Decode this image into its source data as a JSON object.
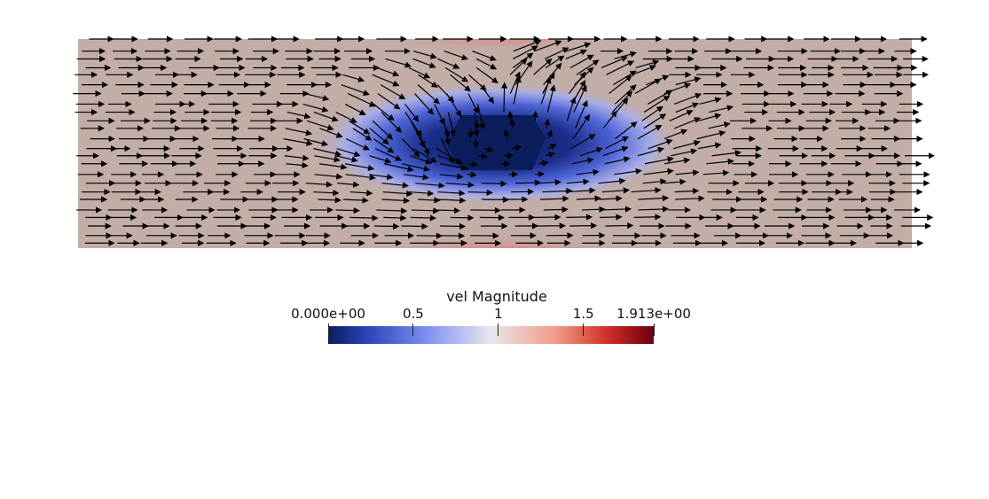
{
  "scene": {
    "colormap": {
      "name": "Cool to Warm",
      "stops": [
        {
          "t": 0.0,
          "color": "#0b1d5c"
        },
        {
          "t": 0.12,
          "color": "#2a45b8"
        },
        {
          "t": 0.3,
          "color": "#7c8ef0"
        },
        {
          "t": 0.5,
          "color": "#e9e6ee"
        },
        {
          "t": 0.7,
          "color": "#f39b85"
        },
        {
          "t": 0.86,
          "color": "#cf2d25"
        },
        {
          "t": 1.0,
          "color": "#6b0010"
        }
      ]
    },
    "background_color": "#ffffff",
    "domain_fill_color": "#c3ada7",
    "arrow_color": "#000000"
  },
  "colorbar": {
    "title": "vel Magnitude",
    "range": [
      0.0,
      1.913
    ],
    "ticks": [
      {
        "value": 0.0,
        "label": "0.000e+00"
      },
      {
        "value": 0.5,
        "label": "0.5"
      },
      {
        "value": 1.0,
        "label": "1"
      },
      {
        "value": 1.5,
        "label": "1.5"
      },
      {
        "value": 1.913,
        "label": "1.913e+00"
      }
    ]
  }
}
